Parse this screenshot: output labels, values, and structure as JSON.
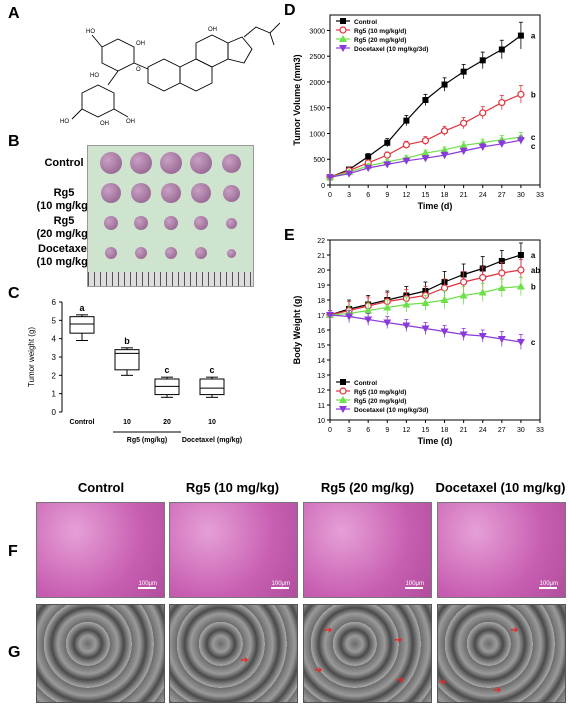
{
  "panel_letters": {
    "A": "A",
    "B": "B",
    "C": "C",
    "D": "D",
    "E": "E",
    "F": "F",
    "G": "G"
  },
  "panel_b": {
    "row_labels": [
      "Control",
      "Rg5\n(10 mg/kg)",
      "Rg5\n(20 mg/kg)",
      "Docetaxel\n(10 mg/kg)"
    ],
    "tumor_rows": [
      5,
      5,
      5,
      5
    ],
    "colors": {
      "background": "#cfe4cf",
      "tumor": "#8b5a86"
    }
  },
  "chart_data": [
    {
      "panel": "C",
      "type": "box",
      "ylabel": "Tumor weight (g)",
      "ylim": [
        0,
        6
      ],
      "yticks": [
        0,
        1,
        2,
        3,
        4,
        5,
        6
      ],
      "categories": [
        "Control",
        "10",
        "20",
        "10"
      ],
      "group_labels": [
        "Rg5 (mg/kg)",
        "Docetaxel (mg/kg)"
      ],
      "boxes": [
        {
          "min": 3.9,
          "q1": 4.3,
          "median": 4.8,
          "q3": 5.2,
          "max": 5.3,
          "sig": "a"
        },
        {
          "min": 2.0,
          "q1": 2.3,
          "median": 3.2,
          "q3": 3.4,
          "max": 3.5,
          "sig": "b"
        },
        {
          "min": 0.8,
          "q1": 0.95,
          "median": 1.4,
          "q3": 1.8,
          "max": 1.9,
          "sig": "c"
        },
        {
          "min": 0.8,
          "q1": 0.95,
          "median": 1.3,
          "q3": 1.8,
          "max": 1.9,
          "sig": "c"
        }
      ]
    },
    {
      "panel": "D",
      "type": "line",
      "xlabel": "Time (d)",
      "ylabel": "Tumor Volume (mm3)",
      "xlim": [
        0,
        33
      ],
      "ylim": [
        0,
        3300
      ],
      "xticks": [
        0,
        3,
        6,
        9,
        12,
        15,
        18,
        21,
        24,
        27,
        30,
        33
      ],
      "yticks": [
        0,
        500,
        1000,
        1500,
        2000,
        2500,
        3000
      ],
      "x": [
        0,
        3,
        6,
        9,
        12,
        15,
        18,
        21,
        24,
        27,
        30
      ],
      "series": [
        {
          "name": "Control",
          "color": "#000000",
          "marker": "square",
          "sig": "a",
          "values": [
            150,
            300,
            550,
            820,
            1250,
            1650,
            1950,
            2200,
            2420,
            2630,
            2900
          ],
          "err": [
            20,
            40,
            60,
            80,
            100,
            110,
            130,
            140,
            160,
            180,
            260
          ]
        },
        {
          "name": "Rg5 (10 mg/kg/d)",
          "color": "#e0323c",
          "marker": "circle",
          "sig": "b",
          "values": [
            150,
            280,
            430,
            580,
            780,
            860,
            1050,
            1200,
            1400,
            1600,
            1760
          ],
          "err": [
            20,
            40,
            50,
            60,
            70,
            80,
            90,
            110,
            120,
            140,
            170
          ]
        },
        {
          "name": "Rg5 (20 mg/kg/d)",
          "color": "#6ee04a",
          "marker": "triangle",
          "sig": "c",
          "values": [
            150,
            250,
            370,
            450,
            520,
            620,
            680,
            770,
            820,
            880,
            930
          ],
          "err": [
            20,
            30,
            40,
            50,
            50,
            60,
            60,
            70,
            70,
            80,
            90
          ]
        },
        {
          "name": "Docetaxel (10 mg/kg/3d)",
          "color": "#8a3ad8",
          "marker": "triangle-down",
          "sig": "c",
          "values": [
            150,
            220,
            330,
            400,
            470,
            520,
            580,
            660,
            740,
            800,
            870
          ],
          "err": [
            20,
            30,
            40,
            40,
            50,
            50,
            60,
            60,
            70,
            70,
            80
          ]
        }
      ],
      "legend": "top-left"
    },
    {
      "panel": "E",
      "type": "line",
      "xlabel": "Time (d)",
      "ylabel": "Body Weight (g)",
      "xlim": [
        0,
        33
      ],
      "ylim": [
        10,
        22
      ],
      "xticks": [
        0,
        3,
        6,
        9,
        12,
        15,
        18,
        21,
        24,
        27,
        30,
        33
      ],
      "yticks": [
        10,
        11,
        12,
        13,
        14,
        15,
        16,
        17,
        18,
        19,
        20,
        21,
        22
      ],
      "x": [
        0,
        3,
        6,
        9,
        12,
        15,
        18,
        21,
        24,
        27,
        30
      ],
      "series": [
        {
          "name": "Control",
          "color": "#000000",
          "marker": "square",
          "sig": "a",
          "values": [
            17.0,
            17.4,
            17.7,
            18.0,
            18.3,
            18.6,
            19.2,
            19.7,
            20.1,
            20.6,
            21.0
          ],
          "err": [
            0.3,
            0.6,
            0.6,
            0.6,
            0.6,
            0.6,
            0.7,
            0.7,
            0.8,
            0.7,
            0.8
          ]
        },
        {
          "name": "Rg5 (10 mg/kg/d)",
          "color": "#e0323c",
          "marker": "circle",
          "sig": "ab",
          "values": [
            17.0,
            17.3,
            17.6,
            17.9,
            18.1,
            18.3,
            18.8,
            19.2,
            19.5,
            19.8,
            20.0
          ],
          "err": [
            0.3,
            0.6,
            0.6,
            0.6,
            0.6,
            0.6,
            0.6,
            0.7,
            0.7,
            0.7,
            0.7
          ]
        },
        {
          "name": "Rg5 (20 mg/kg/d)",
          "color": "#6ee04a",
          "marker": "triangle",
          "sig": "b",
          "values": [
            17.0,
            17.1,
            17.3,
            17.5,
            17.7,
            17.8,
            18.0,
            18.3,
            18.5,
            18.8,
            18.9
          ],
          "err": [
            0.3,
            0.5,
            0.5,
            0.5,
            0.5,
            0.5,
            0.6,
            0.6,
            0.6,
            0.6,
            0.6
          ]
        },
        {
          "name": "Docetaxel (10 mg/kg/3d)",
          "color": "#8a3ad8",
          "marker": "triangle-down",
          "sig": "c",
          "values": [
            17.0,
            16.9,
            16.7,
            16.5,
            16.3,
            16.1,
            15.9,
            15.7,
            15.6,
            15.4,
            15.2
          ],
          "err": [
            0.3,
            0.4,
            0.4,
            0.4,
            0.4,
            0.4,
            0.4,
            0.4,
            0.4,
            0.5,
            0.5
          ]
        }
      ],
      "legend": "bottom-left"
    }
  ],
  "panel_fg": {
    "column_headers": [
      "Control",
      "Rg5 (10 mg/kg)",
      "Rg5 (20 mg/kg)",
      "Docetaxel (10 mg/kg)"
    ],
    "scale_label": "100μm"
  }
}
